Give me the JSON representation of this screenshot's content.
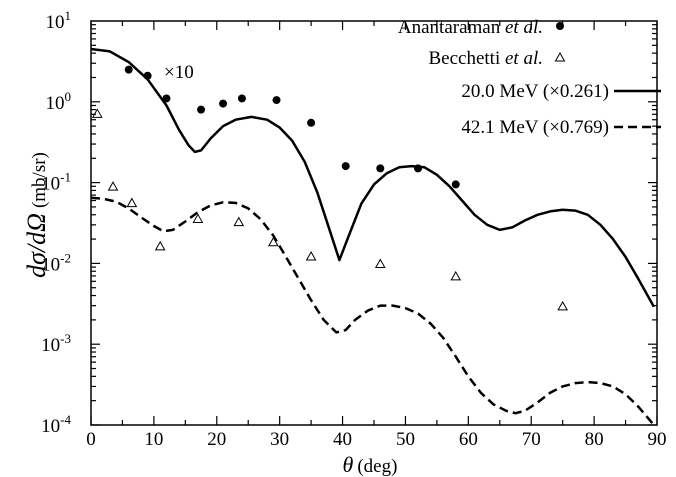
{
  "chart_data": {
    "type": "line",
    "xlabel": "θ (deg)",
    "ylabel": "dσ/dΩ (mb/sr)",
    "xlim": [
      0,
      90
    ],
    "ylim": [
      0.0001,
      10
    ],
    "y_scale": "log",
    "grid": false,
    "legend_position": "top-right",
    "x_ticks": [
      "0",
      "10",
      "20",
      "30",
      "40",
      "50",
      "60",
      "70",
      "80",
      "90"
    ],
    "y_ticks": [
      {
        "base": "10",
        "exp": "1"
      },
      {
        "base": "10",
        "exp": "0"
      },
      {
        "base": "10",
        "exp": "-1"
      },
      {
        "base": "10",
        "exp": "-2"
      },
      {
        "base": "10",
        "exp": "-3"
      },
      {
        "base": "10",
        "exp": "-4"
      }
    ],
    "annotation": "×10",
    "series": [
      {
        "name_main": "Anantaraman",
        "name_italic": "et al.",
        "marker": "filled-circle",
        "x": [
          6,
          9,
          12,
          17.5,
          21,
          24,
          29.5,
          35,
          40.5,
          46,
          52,
          58
        ],
        "y": [
          2.5,
          2.1,
          1.1,
          0.8,
          0.95,
          1.1,
          1.05,
          0.55,
          0.16,
          0.15,
          0.15,
          0.095
        ]
      },
      {
        "name_main": "Becchetti",
        "name_italic": "et al.",
        "marker": "open-triangle",
        "x": [
          1,
          3.5,
          6.5,
          11,
          17,
          23.5,
          29,
          35,
          46,
          58,
          75
        ],
        "y": [
          0.7,
          0.088,
          0.055,
          0.016,
          0.035,
          0.032,
          0.018,
          0.012,
          0.0097,
          0.0068,
          0.0029
        ]
      },
      {
        "name": "20.0 MeV (×0.261)",
        "style": "solid",
        "x": [
          0,
          3,
          6,
          9,
          12,
          14,
          15.5,
          16.5,
          17.5,
          19,
          21,
          23,
          25.5,
          28,
          30,
          32,
          34,
          36,
          38,
          39.5,
          41,
          43,
          45,
          47,
          49,
          51,
          53,
          55,
          57,
          59,
          61,
          63,
          65,
          67,
          69,
          71,
          73,
          75,
          77,
          79,
          81,
          83,
          85,
          87,
          89.5
        ],
        "y": [
          4.5,
          4.2,
          3.1,
          1.9,
          0.9,
          0.45,
          0.29,
          0.24,
          0.25,
          0.35,
          0.5,
          0.6,
          0.65,
          0.6,
          0.48,
          0.33,
          0.18,
          0.075,
          0.025,
          0.011,
          0.022,
          0.055,
          0.095,
          0.13,
          0.155,
          0.16,
          0.155,
          0.125,
          0.09,
          0.06,
          0.04,
          0.03,
          0.026,
          0.028,
          0.034,
          0.04,
          0.044,
          0.046,
          0.045,
          0.04,
          0.03,
          0.02,
          0.012,
          0.0065,
          0.0029
        ]
      },
      {
        "name": "42.1 MeV (×0.769)",
        "style": "dashed",
        "x": [
          0,
          2,
          4,
          6,
          8,
          10,
          11.5,
          13,
          15,
          17,
          19,
          21,
          23,
          25,
          27,
          29,
          31,
          33,
          35,
          37,
          39,
          40.5,
          42,
          44,
          46,
          48,
          50,
          52,
          54,
          56,
          58,
          60,
          62,
          64,
          66,
          67.5,
          69,
          71,
          73,
          75,
          77,
          79,
          81,
          83,
          85,
          87,
          89.5
        ],
        "y": [
          0.065,
          0.063,
          0.058,
          0.048,
          0.037,
          0.029,
          0.025,
          0.026,
          0.033,
          0.043,
          0.052,
          0.057,
          0.056,
          0.048,
          0.035,
          0.022,
          0.012,
          0.0065,
          0.0035,
          0.002,
          0.0014,
          0.0015,
          0.002,
          0.0026,
          0.003,
          0.003,
          0.0028,
          0.0024,
          0.0018,
          0.0012,
          0.0007,
          0.0004,
          0.00025,
          0.00018,
          0.00015,
          0.00014,
          0.00015,
          0.00019,
          0.00025,
          0.0003,
          0.00033,
          0.00034,
          0.00033,
          0.0003,
          0.00024,
          0.00017,
          0.0001
        ]
      }
    ]
  }
}
